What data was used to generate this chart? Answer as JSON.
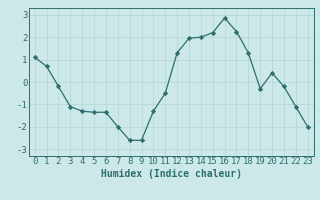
{
  "x": [
    0,
    1,
    2,
    3,
    4,
    5,
    6,
    7,
    8,
    9,
    10,
    11,
    12,
    13,
    14,
    15,
    16,
    17,
    18,
    19,
    20,
    21,
    22,
    23
  ],
  "y": [
    1.1,
    0.7,
    -0.2,
    -1.1,
    -1.3,
    -1.35,
    -1.35,
    -2.0,
    -2.6,
    -2.6,
    -1.3,
    -0.5,
    1.3,
    1.95,
    2.0,
    2.2,
    2.85,
    2.25,
    1.3,
    -0.3,
    0.4,
    -0.2,
    -1.1,
    -2.0
  ],
  "line_color": "#2e6e6e",
  "marker": "D",
  "marker_size": 2.2,
  "bg_color": "#cce8e8",
  "grid_color": "#b8d8d8",
  "xlabel": "Humidex (Indice chaleur)",
  "xlabel_fontsize": 7.0,
  "tick_fontsize": 6.5,
  "xlim": [
    -0.5,
    23.5
  ],
  "ylim": [
    -3.3,
    3.3
  ],
  "yticks": [
    -3,
    -2,
    -1,
    0,
    1,
    2,
    3
  ],
  "xticks": [
    0,
    1,
    2,
    3,
    4,
    5,
    6,
    7,
    8,
    9,
    10,
    11,
    12,
    13,
    14,
    15,
    16,
    17,
    18,
    19,
    20,
    21,
    22,
    23
  ]
}
